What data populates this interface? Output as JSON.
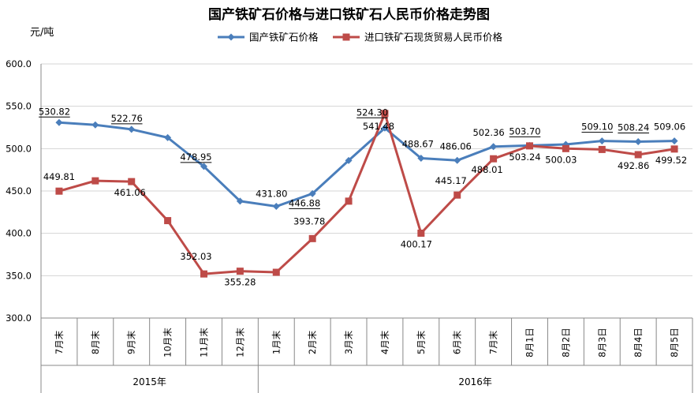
{
  "chart_data": {
    "type": "line",
    "title": "国产铁矿石价格与进口铁矿石人民币价格走势图",
    "ylabel": "元/吨",
    "ylim": [
      300,
      600
    ],
    "yticks": [
      "300.0",
      "350.0",
      "400.0",
      "450.0",
      "500.0",
      "550.0",
      "600.0"
    ],
    "categories": [
      "7月末",
      "8月末",
      "9月末",
      "10月末",
      "11月末",
      "12月末",
      "1月末",
      "2月末",
      "3月末",
      "4月末",
      "5月末",
      "6月末",
      "7月末",
      "8月1日",
      "8月2日",
      "8月3日",
      "8月4日",
      "8月5日"
    ],
    "groups": [
      {
        "label": "2015年",
        "count": 6
      },
      {
        "label": "2016年",
        "count": 12
      }
    ],
    "legend_position": "top",
    "series": [
      {
        "name": "国产铁矿石价格",
        "color": "#4a7ebb",
        "marker": "diamond",
        "values": [
          530.82,
          528,
          522.76,
          513,
          478.95,
          438,
          431.8,
          446.88,
          486,
          524.3,
          488.67,
          486.06,
          502.36,
          503.7,
          505,
          509.1,
          508.24,
          509.06
        ],
        "labels": [
          "530.82",
          "",
          "522.76",
          "",
          "478.95",
          "",
          "431.80",
          "446.88",
          "",
          "524.30",
          "488.67",
          "486.06",
          "502.36",
          "503.70",
          "",
          "509.10",
          "508.24",
          "509.06"
        ]
      },
      {
        "name": "进口铁矿石现货贸易人民币价格",
        "color": "#be4b48",
        "marker": "square",
        "values": [
          449.81,
          462,
          461.06,
          415,
          352.03,
          355.28,
          354,
          393.78,
          438,
          541.48,
          400.17,
          445.17,
          488.01,
          503.24,
          500.03,
          499,
          492.86,
          499.52
        ],
        "labels": [
          "449.81",
          "",
          "461.06",
          "",
          "352.03",
          "355.28",
          "",
          "393.78",
          "",
          "541.48",
          "400.17",
          "445.17",
          "488.01",
          "503.24",
          "500.03",
          "",
          "492.86",
          "499.52"
        ]
      }
    ]
  }
}
